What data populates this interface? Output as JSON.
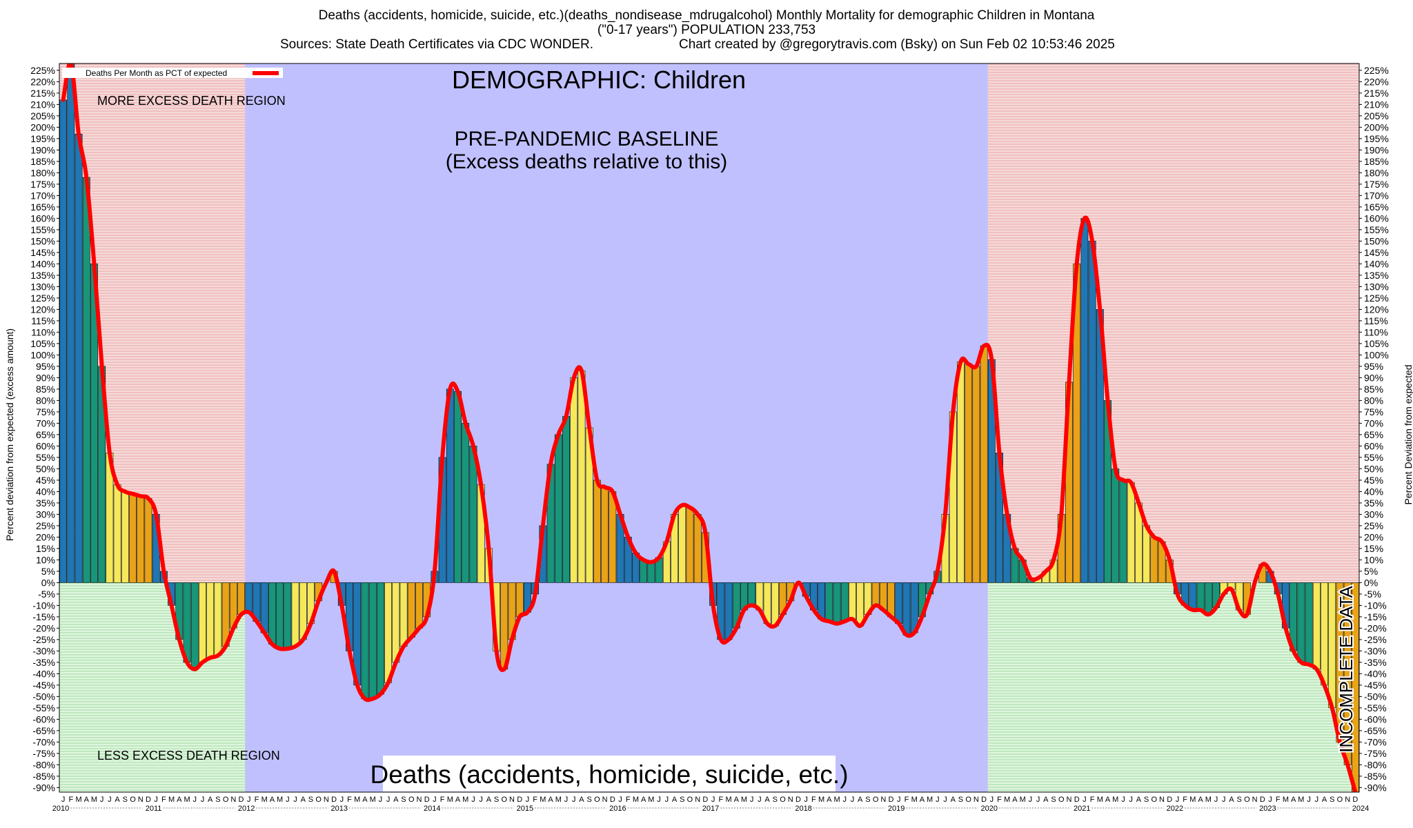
{
  "header": {
    "line1": "Deaths (accidents, homicide, suicide, etc.)(deaths_nondisease_mdrugalcohol) Monthly Mortality for demographic Children in Montana",
    "line2": "(\"0-17 years\") POPULATION 233,753",
    "line3_left": "Sources: State Death Certificates via CDC WONDER.",
    "line3_right": "Chart created by @gregorytravis.com (Bsky) on Sun Feb 02 10:53:46 2025"
  },
  "labels": {
    "demographic": "DEMOGRAPHIC: Children",
    "baseline_1": "PRE-PANDEMIC BASELINE",
    "baseline_2": "(Excess deaths relative to this)",
    "more_excess": "MORE EXCESS DEATH REGION",
    "less_excess": "LESS EXCESS DEATH REGION",
    "incomplete": "INCOMPLETE DATA",
    "category": "Deaths (accidents, homicide, suicide, etc.)"
  },
  "colors": {
    "line": "#ff0000",
    "bar_q1": "#1f77b4",
    "bar_q2": "#17967a",
    "bar_q3": "#f5e85a",
    "bar_q4": "#e8a317",
    "baseline_region": "#c0c0ff",
    "excess_region": "#f2c6c6",
    "less_region": "#c9efc9"
  },
  "chart_data": {
    "type": "bar",
    "ylabel": "Percent deviation from expected (excess amount)",
    "ylabel_right": "Percent Deviation from expected",
    "legend": "Deaths Per Month as PCT of expected",
    "ylim": [
      -92,
      228
    ],
    "y_tick_step": 5,
    "y_tick_min": -90,
    "y_tick_max": 225,
    "baseline_period": [
      "2012-01",
      "2019-12"
    ],
    "incomplete_from": "2024-01",
    "years": [
      "2010",
      "2011",
      "2012",
      "2013",
      "2014",
      "2015",
      "2016",
      "2017",
      "2018",
      "2019",
      "2020",
      "2021",
      "2022",
      "2023",
      "2024"
    ],
    "month_letters": [
      "J",
      "F",
      "M",
      "A",
      "M",
      "J",
      "J",
      "A",
      "S",
      "O",
      "N",
      "D"
    ],
    "values": [
      212,
      228,
      197,
      178,
      140,
      95,
      57,
      43,
      40,
      39,
      38,
      37,
      30,
      5,
      -10,
      -25,
      -35,
      -38,
      -35,
      -33,
      -32,
      -28,
      -20,
      -14,
      -13,
      -17,
      -22,
      -27,
      -29,
      -29,
      -28,
      -25,
      -18,
      -8,
      0,
      5,
      -10,
      -30,
      -45,
      -51,
      -51,
      -49,
      -44,
      -35,
      -28,
      -24,
      -20,
      -15,
      5,
      55,
      85,
      84,
      70,
      60,
      43,
      15,
      -30,
      -38,
      -25,
      -15,
      -13,
      -5,
      25,
      52,
      65,
      73,
      90,
      93,
      68,
      45,
      42,
      40,
      30,
      20,
      13,
      10,
      9,
      11,
      18,
      30,
      34,
      33,
      30,
      22,
      -10,
      -25,
      -25,
      -20,
      -12,
      -10,
      -12,
      -18,
      -19,
      -14,
      -8,
      0,
      -6,
      -12,
      -16,
      -17,
      -18,
      -17,
      -16,
      -19,
      -14,
      -10,
      -12,
      -15,
      -18,
      -23,
      -22,
      -15,
      -5,
      5,
      30,
      75,
      97,
      96,
      95,
      104,
      98,
      57,
      30,
      15,
      10,
      2,
      2,
      5,
      10,
      30,
      88,
      140,
      160,
      150,
      120,
      80,
      50,
      45,
      44,
      35,
      25,
      20,
      18,
      10,
      -5,
      -10,
      -12,
      -12,
      -14,
      -11,
      -5,
      -3,
      -12,
      -14,
      0,
      8,
      5,
      -5,
      -20,
      -30,
      -35,
      -36,
      -38,
      -45,
      -55,
      -70,
      -80,
      -92
    ]
  }
}
